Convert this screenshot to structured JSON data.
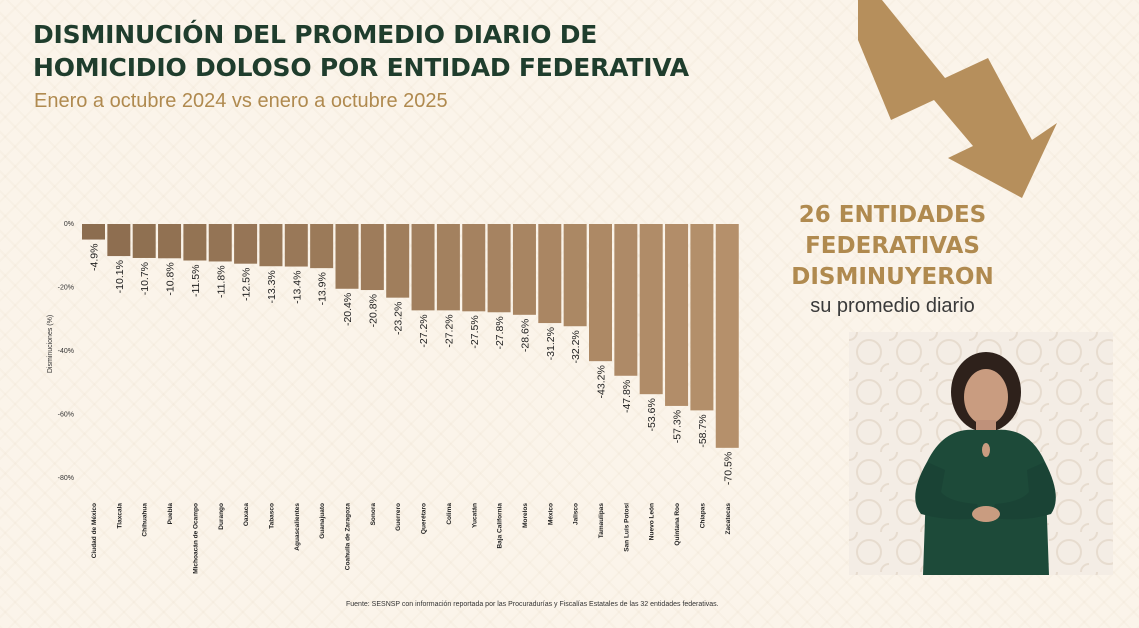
{
  "header": {
    "title_line1": "DISMINUCIÓN DEL PROMEDIO DIARIO DE",
    "title_line2": "HOMICIDIO DOLOSO POR ENTIDAD FEDERATIVA",
    "subtitle": "Enero a octubre 2024 vs enero a octubre 2025"
  },
  "callout": {
    "line1": "26 ENTIDADES",
    "line2": "FEDERATIVAS",
    "line3": "DISMINUYERON",
    "line4": "su promedio diario"
  },
  "footer": {
    "source": "Fuente: SESNSP con información reportada por las Procuradurías y Fiscalías Estatales de las 32 entidades federativas."
  },
  "video": {
    "icon": "sign-language-interpreter-figure"
  },
  "colors": {
    "title": "#1f3d2d",
    "accent": "#b08a4f",
    "bar_dark": "#8c6d4f",
    "bar_light": "#b5906b",
    "background": "#fbf4ea"
  },
  "chart_data": {
    "type": "bar",
    "title": "",
    "xlabel": "",
    "ylabel": "Disminuciones (%)",
    "ylim": [
      -80,
      0
    ],
    "yticks": [
      "0%",
      "-20%",
      "-40%",
      "-60%",
      "-80%"
    ],
    "ytick_values": [
      0,
      -20,
      -40,
      -60,
      -80
    ],
    "grid": false,
    "categories": [
      "Ciudad de México",
      "Tlaxcala",
      "Chihuahua",
      "Puebla",
      "Michoacán de Ocampo",
      "Durango",
      "Oaxaca",
      "Tabasco",
      "Aguascalientes",
      "Guanajuato",
      "Coahuila de Zaragoza",
      "Sonora",
      "Guerrero",
      "Querétaro",
      "Colima",
      "Yucatán",
      "Baja California",
      "Morelos",
      "México",
      "Jalisco",
      "Tamaulipas",
      "San Luis Potosí",
      "Nuevo León",
      "Quintana Roo",
      "Chiapas",
      "Zacatecas"
    ],
    "values": [
      -4.9,
      -10.1,
      -10.7,
      -10.8,
      -11.5,
      -11.8,
      -12.5,
      -13.3,
      -13.4,
      -13.9,
      -20.4,
      -20.8,
      -23.2,
      -27.2,
      -27.2,
      -27.5,
      -27.8,
      -28.6,
      -31.2,
      -32.2,
      -43.2,
      -47.8,
      -53.6,
      -57.3,
      -58.7,
      -70.5
    ],
    "labels": [
      "-4.9%",
      "-10.1%",
      "-10.7%",
      "-10.8%",
      "-11.5%",
      "-11.8%",
      "-12.5%",
      "-13.3%",
      "-13.4%",
      "-13.9%",
      "-20.4%",
      "-20.8%",
      "-23.2%",
      "-27.2%",
      "-27.2%",
      "-27.5%",
      "-27.8%",
      "-28.6%",
      "-31.2%",
      "-32.2%",
      "-43.2%",
      "-47.8%",
      "-53.6%",
      "-57.3%",
      "-58.7%",
      "-70.5%"
    ]
  }
}
